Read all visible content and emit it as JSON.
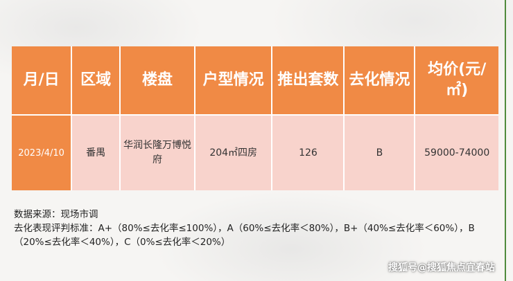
{
  "table": {
    "headers": [
      "月/日",
      "区域",
      "楼盘",
      "户型情况",
      "推出套数",
      "去化情况",
      "均价(元/㎡)"
    ],
    "row": {
      "date": "2023/4/10",
      "district": "番禺",
      "project": "华润长隆万博悦府",
      "unit_type": "204㎡四房",
      "units_launched": "126",
      "absorption": "B",
      "avg_price": "59000-74000"
    }
  },
  "notes": {
    "source": "数据来源：现场市调",
    "criteria": "去化表现评判标准：A+（80%≤去化率≤100%），A（60%≤去化率＜80%），B+（40%≤去化率＜60%），B（20%≤去化率＜40%），C（0%≤去化率＜20%）"
  },
  "watermark": "搜狐号@搜狐焦点宜春站",
  "colors": {
    "header_bg": "#f08a45",
    "row_bg": "#f8d3cc",
    "border_accent": "#4f8a3c"
  }
}
